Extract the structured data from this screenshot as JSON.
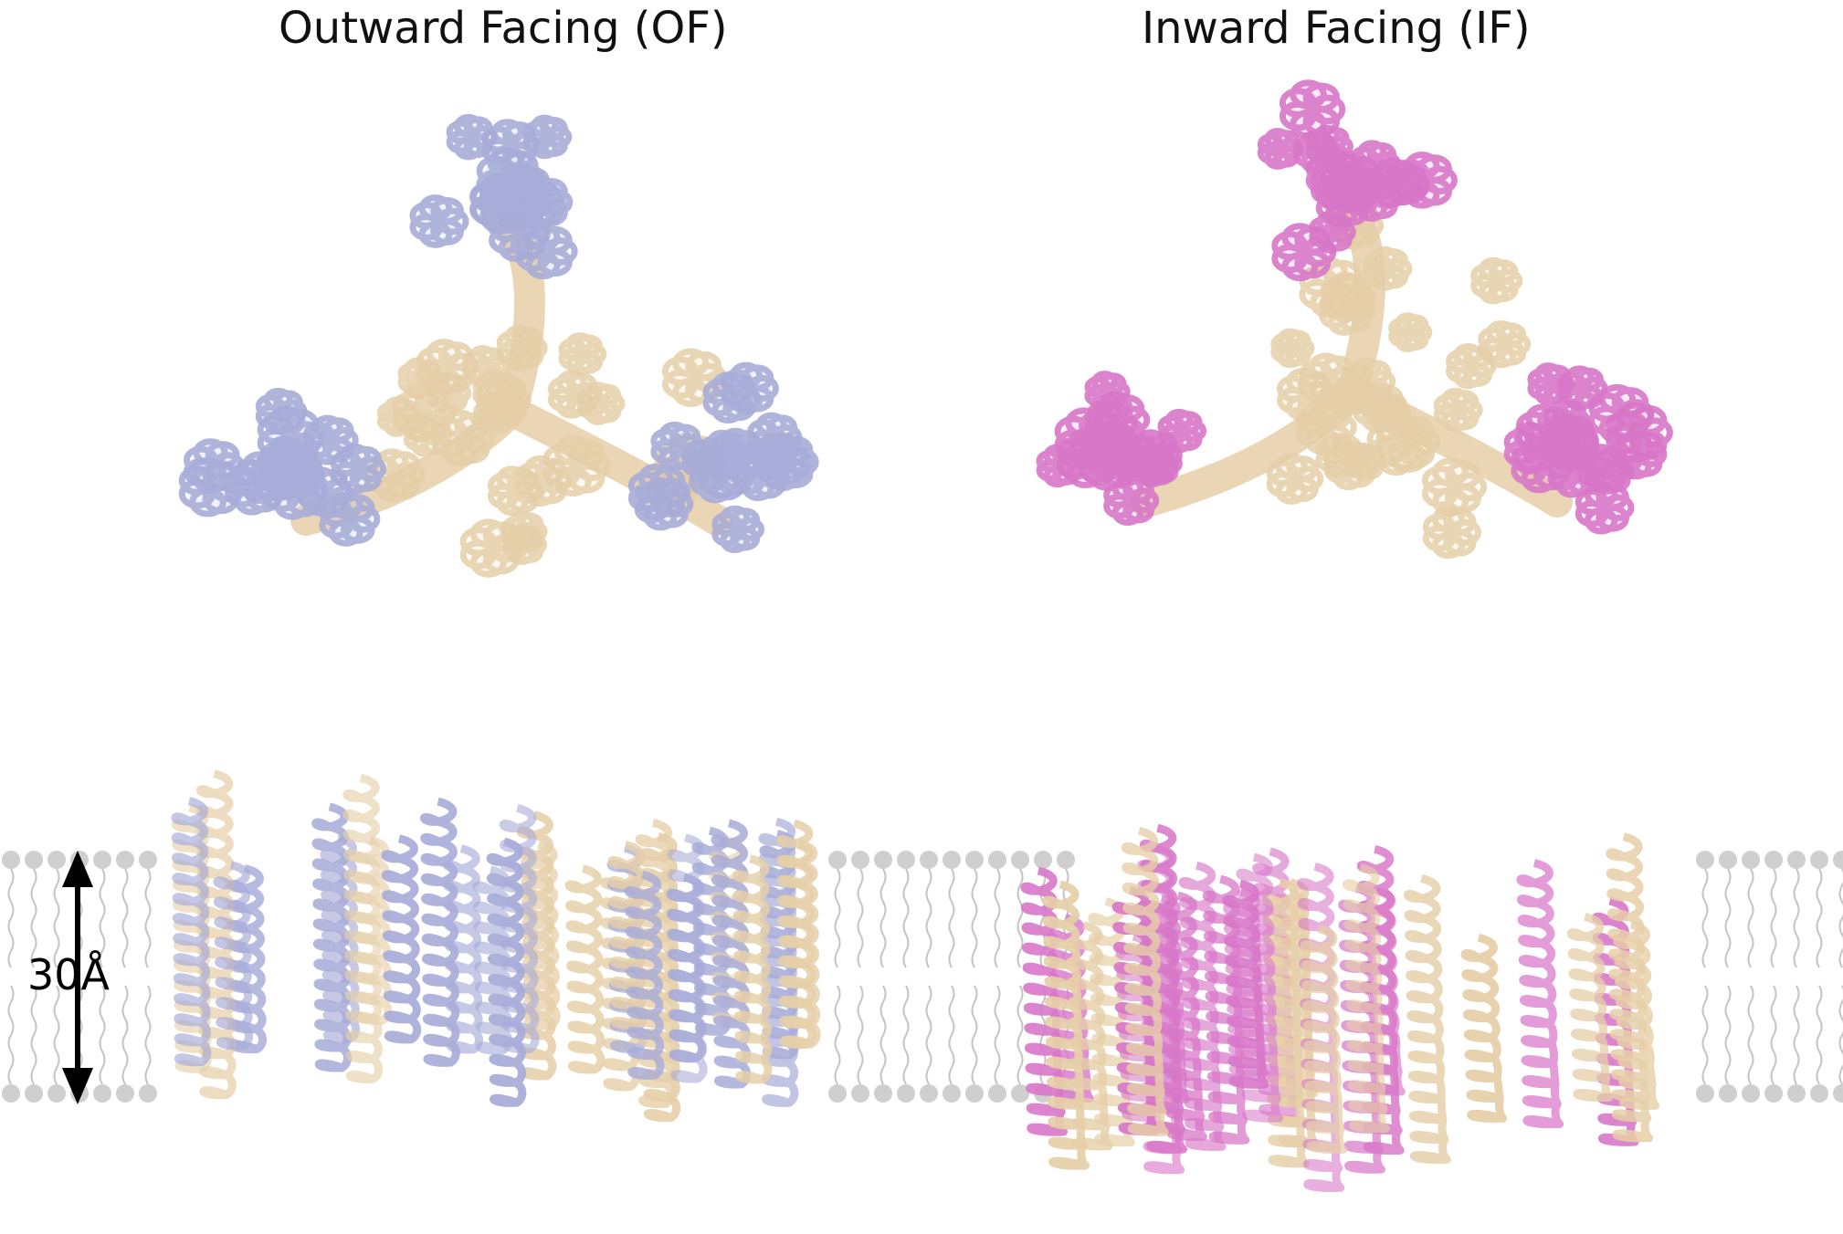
{
  "panels": {
    "outward_title": "Outward Facing (OF)",
    "inward_title": "Inward Facing (IF)"
  },
  "scale_bar": {
    "label": "30Å"
  },
  "colors": {
    "of_subunit": "#a8acd8",
    "if_subunit": "#d877c8",
    "scaffold": "#e6cfa8",
    "lipid_head": "#cfcfcf",
    "lipid_tail": "#c4c4c4",
    "arrow": "#000000"
  }
}
